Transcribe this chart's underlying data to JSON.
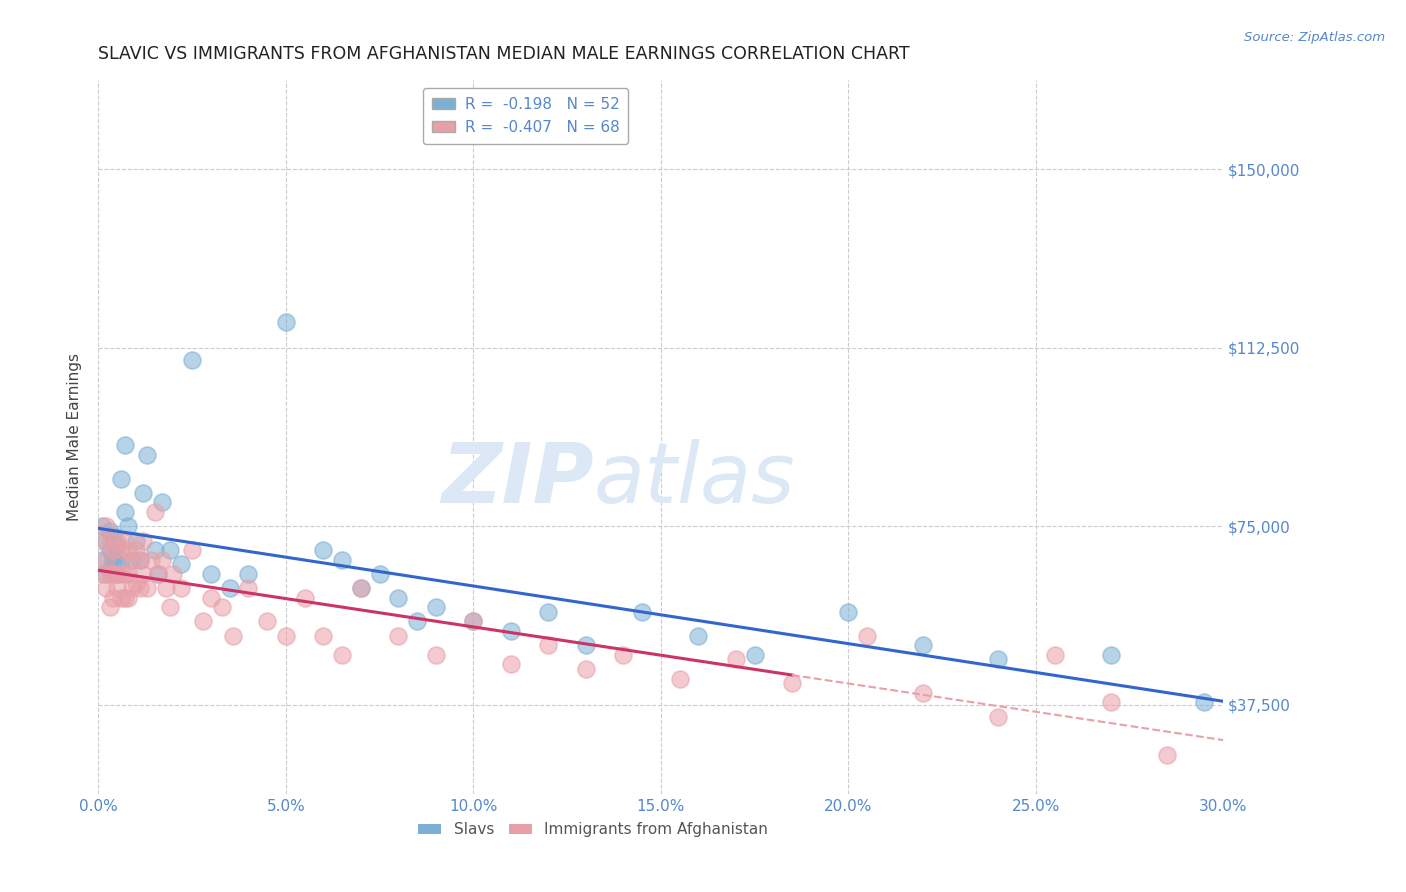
{
  "title": "SLAVIC VS IMMIGRANTS FROM AFGHANISTAN MEDIAN MALE EARNINGS CORRELATION CHART",
  "source": "Source: ZipAtlas.com",
  "ylabel": "Median Male Earnings",
  "xlim": [
    0.0,
    0.3
  ],
  "ylim": [
    18750,
    168750
  ],
  "yticks": [
    37500,
    75000,
    112500,
    150000
  ],
  "ytick_labels": [
    "$37,500",
    "$75,000",
    "$112,500",
    "$150,000"
  ],
  "xticks": [
    0.0,
    0.05,
    0.1,
    0.15,
    0.2,
    0.25,
    0.3
  ],
  "xtick_labels": [
    "0.0%",
    "5.0%",
    "10.0%",
    "15.0%",
    "20.0%",
    "25.0%",
    "30.0%"
  ],
  "series1_name": "Slavs",
  "series1_R": -0.198,
  "series1_N": 52,
  "series1_color": "#7bafd4",
  "series2_name": "Immigrants from Afghanistan",
  "series2_R": -0.407,
  "series2_N": 68,
  "series2_color": "#e8a0a8",
  "trend1_color": "#3366cc",
  "trend2_color": "#cc3366",
  "trend2_dashed_color": "#e8a0a8",
  "background_color": "#ffffff",
  "grid_color": "#cccccc",
  "watermark_color": "#dce8f5",
  "title_color": "#222222",
  "axis_label_color": "#444444",
  "tick_label_color": "#5588cc",
  "legend_box_color": "#ffffff",
  "legend_border_color": "#aaaaaa",
  "series1_x": [
    0.001,
    0.001,
    0.002,
    0.002,
    0.003,
    0.003,
    0.003,
    0.004,
    0.004,
    0.004,
    0.005,
    0.005,
    0.005,
    0.006,
    0.006,
    0.007,
    0.007,
    0.008,
    0.009,
    0.01,
    0.011,
    0.012,
    0.013,
    0.015,
    0.016,
    0.017,
    0.019,
    0.022,
    0.025,
    0.03,
    0.035,
    0.04,
    0.05,
    0.06,
    0.065,
    0.07,
    0.075,
    0.08,
    0.085,
    0.09,
    0.1,
    0.11,
    0.12,
    0.13,
    0.145,
    0.16,
    0.175,
    0.2,
    0.22,
    0.24,
    0.27,
    0.295
  ],
  "series1_y": [
    75000,
    68000,
    65000,
    72000,
    70000,
    66000,
    74000,
    68000,
    73000,
    69000,
    71000,
    67000,
    65000,
    85000,
    68000,
    92000,
    78000,
    75000,
    68000,
    72000,
    68000,
    82000,
    90000,
    70000,
    65000,
    80000,
    70000,
    67000,
    110000,
    65000,
    62000,
    65000,
    118000,
    70000,
    68000,
    62000,
    65000,
    60000,
    55000,
    58000,
    55000,
    53000,
    57000,
    50000,
    57000,
    52000,
    48000,
    57000,
    50000,
    47000,
    48000,
    38000
  ],
  "series2_x": [
    0.001,
    0.001,
    0.002,
    0.002,
    0.002,
    0.003,
    0.003,
    0.003,
    0.004,
    0.004,
    0.004,
    0.005,
    0.005,
    0.005,
    0.006,
    0.006,
    0.006,
    0.007,
    0.007,
    0.007,
    0.008,
    0.008,
    0.008,
    0.009,
    0.009,
    0.01,
    0.01,
    0.011,
    0.011,
    0.012,
    0.012,
    0.013,
    0.014,
    0.015,
    0.016,
    0.017,
    0.018,
    0.019,
    0.02,
    0.022,
    0.025,
    0.028,
    0.03,
    0.033,
    0.036,
    0.04,
    0.045,
    0.05,
    0.055,
    0.06,
    0.065,
    0.07,
    0.08,
    0.09,
    0.1,
    0.11,
    0.12,
    0.13,
    0.14,
    0.155,
    0.17,
    0.185,
    0.205,
    0.22,
    0.24,
    0.255,
    0.27,
    0.285
  ],
  "series2_y": [
    72000,
    65000,
    75000,
    68000,
    62000,
    72000,
    65000,
    58000,
    70000,
    65000,
    60000,
    72000,
    65000,
    62000,
    70000,
    65000,
    60000,
    72000,
    65000,
    60000,
    70000,
    65000,
    60000,
    68000,
    62000,
    70000,
    63000,
    68000,
    62000,
    72000,
    65000,
    62000,
    68000,
    78000,
    65000,
    68000,
    62000,
    58000,
    65000,
    62000,
    70000,
    55000,
    60000,
    58000,
    52000,
    62000,
    55000,
    52000,
    60000,
    52000,
    48000,
    62000,
    52000,
    48000,
    55000,
    46000,
    50000,
    45000,
    48000,
    43000,
    47000,
    42000,
    52000,
    40000,
    35000,
    48000,
    38000,
    27000
  ]
}
